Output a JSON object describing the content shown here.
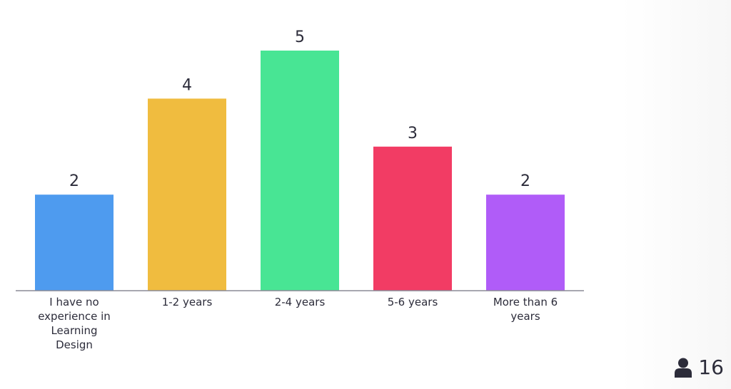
{
  "chart_data": {
    "type": "bar",
    "categories": [
      "I have no experience in Learning Design",
      "1-2 years",
      "2-4 years",
      "5-6 years",
      "More than 6 years"
    ],
    "values": [
      2,
      4,
      5,
      3,
      2
    ],
    "colors": [
      "#4e9bef",
      "#f0bc3f",
      "#48e594",
      "#f23c64",
      "#b05cf8"
    ],
    "ylim": [
      0,
      5
    ]
  },
  "participant_count": 16
}
